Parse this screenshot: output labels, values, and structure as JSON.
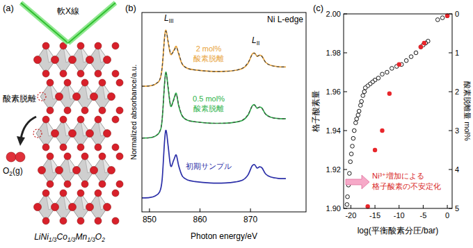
{
  "diagram": {
    "label": "(a)",
    "beam": "軟X線",
    "release": "酸素脱離",
    "gas": "O2(g)",
    "formula": "LiNi1/3Co1/3Mn1/3O2"
  },
  "chart_data": [
    {
      "type": "line",
      "title": "(b)",
      "x_label": "Photon energy/eV",
      "y_label": "Normalized absorbance/a.u.",
      "annotations": [
        "LIII",
        "LII",
        "Ni L-edge"
      ],
      "x": [
        848.5,
        850,
        851,
        852,
        852.5,
        853,
        853.3,
        853.7,
        854.2,
        854.8,
        855.3,
        855.8,
        856.5,
        857.5,
        859,
        862,
        865,
        867,
        868.5,
        869.5,
        870.3,
        870.8,
        871.3,
        871.8,
        872.3,
        873,
        874,
        875.5,
        877
      ],
      "xlim": [
        848.5,
        881
      ],
      "xticks": [
        850,
        860,
        870
      ],
      "ylim": [
        0,
        10
      ],
      "tick_labels": "x",
      "series": [
        {
          "name": "初期サンプル",
          "color": "#2b2fa8",
          "line_style": "solid",
          "values": [
            0.7,
            0.72,
            0.78,
            1.0,
            1.6,
            3.6,
            4.08,
            3.3,
            2.3,
            2.6,
            2.85,
            2.3,
            1.8,
            1.6,
            1.52,
            1.45,
            1.45,
            1.5,
            1.6,
            1.85,
            2.3,
            2.37,
            2.2,
            2.26,
            2.2,
            1.9,
            1.75,
            1.68,
            1.67
          ]
        },
        {
          "name": "0.5 mol%\n酸素脱離",
          "color": "#2db34a",
          "line_style": "solid",
          "values": [
            3.7,
            3.72,
            3.78,
            4.0,
            4.6,
            6.5,
            7.0,
            6.2,
            5.3,
            5.65,
            5.95,
            5.3,
            4.8,
            4.6,
            4.52,
            4.45,
            4.45,
            4.5,
            4.6,
            4.85,
            5.3,
            5.37,
            5.2,
            5.26,
            5.2,
            4.9,
            4.75,
            4.68,
            4.67
          ]
        },
        {
          "color": "#444444",
          "line_style": "dashed",
          "values": [
            3.7,
            3.72,
            3.79,
            4.02,
            4.65,
            6.45,
            6.95,
            6.25,
            5.35,
            5.6,
            5.9,
            5.35,
            4.82,
            4.6,
            4.52,
            4.45,
            4.45,
            4.5,
            4.62,
            4.88,
            5.28,
            5.35,
            5.22,
            5.25,
            5.18,
            4.9,
            4.75,
            4.68,
            4.67
          ]
        },
        {
          "name": "2 mol%\n酸素脱離",
          "color": "#e8a33a",
          "line_style": "solid",
          "values": [
            6.3,
            6.32,
            6.38,
            6.6,
            7.2,
            8.8,
            9.1,
            8.5,
            7.9,
            8.1,
            8.3,
            7.9,
            7.4,
            7.2,
            7.12,
            7.05,
            7.05,
            7.1,
            7.2,
            7.45,
            7.9,
            7.97,
            7.8,
            7.86,
            7.8,
            7.5,
            7.35,
            7.28,
            7.27
          ]
        },
        {
          "color": "#444444",
          "line_style": "dashed",
          "values": [
            6.3,
            6.32,
            6.4,
            6.62,
            7.25,
            8.75,
            9.05,
            8.55,
            7.95,
            8.05,
            8.25,
            7.95,
            7.42,
            7.2,
            7.12,
            7.05,
            7.05,
            7.1,
            7.22,
            7.48,
            7.88,
            7.95,
            7.82,
            7.85,
            7.78,
            7.5,
            7.35,
            7.28,
            7.27
          ]
        }
      ]
    },
    {
      "type": "scatter",
      "title": "(c)",
      "x_label": "log(平衡酸素分圧/bar)",
      "y_label": "格子酸素量",
      "y2_label": "酸素脱離量 mol%",
      "annotation": "Ni³⁺増加による\n格子酸素の不安定化",
      "xlim": [
        -21.5,
        1
      ],
      "xticks": [
        -20,
        -15,
        -10,
        -5,
        0
      ],
      "ylim": [
        1.9,
        2.0
      ],
      "yticks": [
        {
          "value": 1.9,
          "label": "1.90"
        },
        1.92,
        1.94,
        1.96,
        1.98,
        {
          "value": 2.0,
          "label": "2.00"
        }
      ],
      "y2lim": [
        5,
        0
      ],
      "y2ticks": [
        0,
        1,
        2,
        3,
        4,
        5
      ],
      "series": [
        {
          "color": "#000000",
          "marker": "open-circle",
          "x": [
            0,
            -1,
            -2,
            -4,
            -4.5,
            -5,
            -5.5,
            -6.5,
            -7.5,
            -8.5,
            -9.5,
            -10.5,
            -11.5,
            -12.5,
            -13.5,
            -14.3,
            -15,
            -15.5,
            -16,
            -16.5,
            -17,
            -17.2,
            -17.5,
            -17.8,
            -18,
            -18.3,
            -18.5,
            -18.8,
            -19,
            -19.3,
            -19.5,
            -19.7,
            -19.9,
            -20.1,
            -20.3,
            -20.5,
            -20.7,
            -20.8
          ],
          "values": [
            1.999,
            1.998,
            1.997,
            1.986,
            1.985,
            1.984,
            1.983,
            1.98,
            1.978,
            1.976,
            1.974,
            1.973,
            1.972,
            1.97,
            1.969,
            1.967,
            1.966,
            1.965,
            1.964,
            1.963,
            1.962,
            1.96,
            1.958,
            1.955,
            1.953,
            1.95,
            1.948,
            1.946,
            1.944,
            1.94,
            1.936,
            1.932,
            1.928,
            1.924,
            1.918,
            1.912,
            1.906,
            1.902
          ]
        },
        {
          "color": "#e8262b",
          "marker": "filled-circle",
          "x": [
            0,
            -4.8,
            -5.5,
            -10,
            -12,
            -13.5,
            -15,
            -16.5
          ],
          "values": [
            1.999,
            1.985,
            1.983,
            1.974,
            1.959,
            1.94,
            1.93,
            1.901
          ]
        }
      ]
    }
  ]
}
